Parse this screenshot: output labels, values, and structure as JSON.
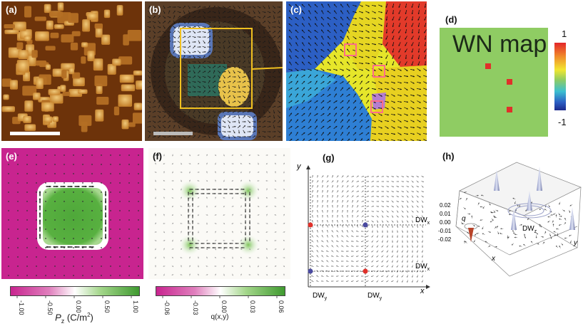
{
  "panels": {
    "a": {
      "label": "(a)"
    },
    "b": {
      "label": "(b)"
    },
    "c": {
      "label": "(c)"
    },
    "d": {
      "label": "(d)",
      "map_title": "WN map",
      "scale_max": "1",
      "scale_min": "-1"
    },
    "e": {
      "label": "(e)"
    },
    "f": {
      "label": "(f)"
    },
    "g": {
      "label": "(g)",
      "axis_x": "x",
      "axis_y": "y",
      "dw_x_top": "DW",
      "dw_x_top_sub": "x",
      "dw_x_bottom": "DW",
      "dw_x_bottom_sub": "x",
      "dw_y_left": "DW",
      "dw_y_left_sub": "y",
      "dw_y_right": "DW",
      "dw_y_right_sub": "y"
    },
    "h": {
      "label": "(h)",
      "axis_q": "q",
      "axis_x": "x",
      "axis_y": "y",
      "dw_z": "DW",
      "dw_z_sub": "z",
      "ticks": [
        "0.02",
        "0.01",
        "0.00",
        "-0.01",
        "-0.02"
      ]
    }
  },
  "colorbars": {
    "pz": {
      "ticks": [
        "-1.00",
        "-0.50",
        "0.00",
        "0.50",
        "1.00"
      ],
      "title_main": "P",
      "title_sub": "z",
      "title_unit": " (C/m",
      "title_sup": "2",
      "title_end": ")"
    },
    "q": {
      "ticks": [
        "-0.06",
        "-0.03",
        "0.00",
        "0.03",
        "0.06"
      ],
      "title": "q(x,y)"
    }
  },
  "colors": {
    "magenta": "#c8248f",
    "green": "#4fa83a",
    "wn_green": "#8fcc63",
    "red_marker": "#e0302a",
    "box_yellow": "#f0c020"
  }
}
